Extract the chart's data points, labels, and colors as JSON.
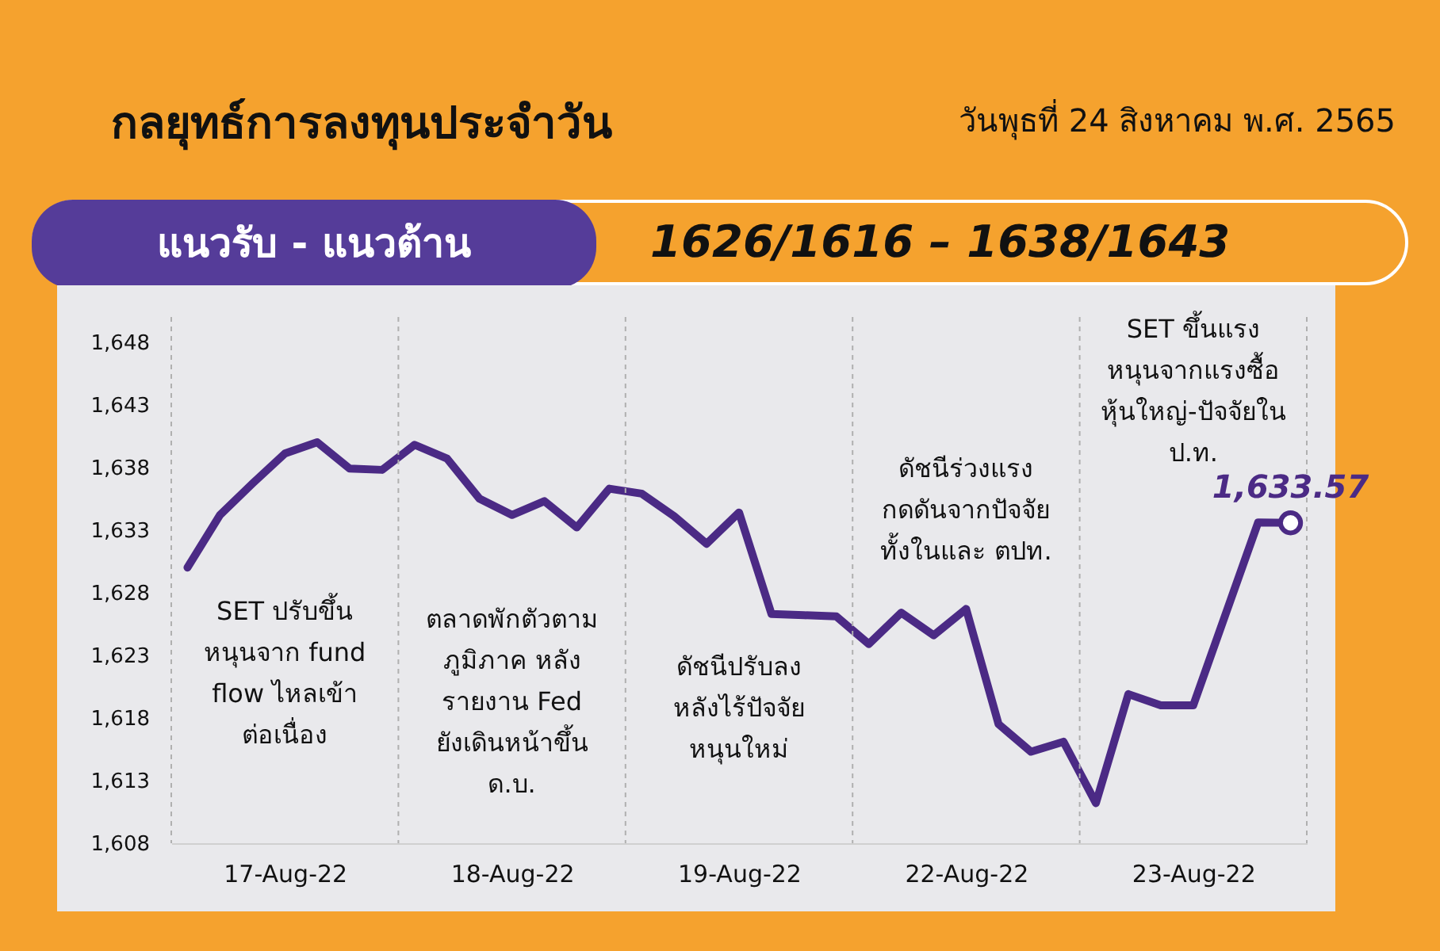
{
  "chart_data": {
    "type": "line",
    "title": "กลยุทธ์การลงทุนประจำวัน",
    "subtitle": "วันพุธที่ 24 สิงหาคม พ.ศ. 2565",
    "annotations": [
      "แนวรับ - แนวต้าน",
      "1626/1616 – 1638/1643",
      "SET ปรับขึ้น\nหนุนจาก fund\nflow ไหลเข้า\nต่อเนื่อง",
      "ตลาดพักตัวตาม\nภูมิภาค หลัง\nรายงาน Fed\nยังเดินหน้าขึ้น\nด.บ.",
      "ดัชนีปรับลง\nหลังไร้ปัจจัย\nหนุนใหม่",
      "ดัชนีร่วงแรง\nกดดันจากปัจจัย\nทั้งในและ ตปท.",
      "SET ขึ้นแรง\nหนุนจากแรงซื้อ\nหุ้นใหญ่-ปัจจัยใน\nป.ท."
    ],
    "categories": [
      null,
      null,
      null,
      "17-Aug-22",
      null,
      null,
      null,
      null,
      null,
      null,
      "18-Aug-22",
      null,
      null,
      null,
      null,
      null,
      null,
      "19-Aug-22",
      null,
      null,
      null,
      null,
      null,
      null,
      "22-Aug-22",
      null,
      null,
      null,
      null,
      null,
      null,
      "23-Aug-22",
      null,
      null,
      null
    ],
    "series": [
      {
        "color": "#4b2a85",
        "values": [
          1630.0,
          1634.2,
          1636.7,
          1639.1,
          1640.0,
          1637.9,
          1637.8,
          1639.8,
          1638.7,
          1635.5,
          1634.2,
          1635.3,
          1633.2,
          1636.3,
          1635.9,
          1634.1,
          1631.9,
          1634.4,
          1626.3,
          1626.2,
          1626.1,
          1623.9,
          1626.4,
          1624.6,
          1626.7,
          1617.5,
          1615.3,
          1616.1,
          1611.2,
          1619.9,
          1619.0,
          1619.0,
          1626.3,
          1633.6,
          1633.57
        ],
        "value_labels": [
          null,
          null,
          null,
          null,
          null,
          null,
          null,
          null,
          null,
          null,
          null,
          null,
          null,
          null,
          null,
          null,
          null,
          null,
          null,
          null,
          null,
          null,
          null,
          null,
          null,
          null,
          null,
          null,
          null,
          null,
          null,
          null,
          null,
          null,
          "1,633.57"
        ]
      }
    ],
    "ylim": [
      1608,
      1650
    ],
    "yticks": [
      {
        "value": 1608,
        "label": "1,608"
      },
      {
        "value": 1613,
        "label": "1,613"
      },
      {
        "value": 1618,
        "label": "1,618"
      },
      {
        "value": 1623,
        "label": "1,623"
      },
      {
        "value": 1628,
        "label": "1,628"
      },
      {
        "value": 1633,
        "label": "1,633"
      },
      {
        "value": 1638,
        "label": "1,638"
      },
      {
        "value": 1643,
        "label": "1,643"
      },
      {
        "value": 1648,
        "label": "1,648"
      }
    ]
  }
}
